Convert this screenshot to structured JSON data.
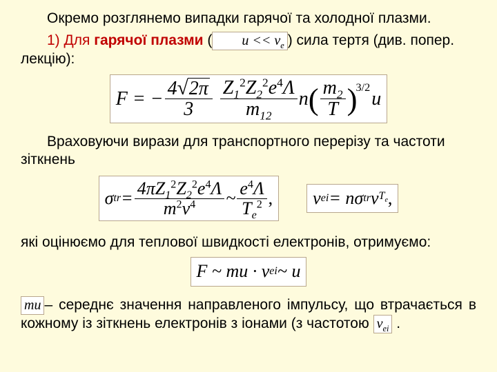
{
  "p1": "Окремо розглянемо випадки гарячої та холодної плазми.",
  "p2a": "1) Для ",
  "p2b": "гарячої плазми",
  "p2c": "  (",
  "p2d_math": "u << v",
  "p2d_sub": "e",
  "p2e": ")   сила тертя (див. попер. лекцію):",
  "f1": {
    "lhs": "F = −",
    "num1": "4",
    "sqrt": "2π",
    "num3": "3",
    "mid_num": "Z₁² Z₂² e⁴ Λ",
    "mid_den": "m₁₂",
    "n": " n",
    "par_num": "m₂",
    "par_den": "T",
    "pow": "3/2",
    "tail": "u"
  },
  "p3": "Враховуючи вирази для транспортного перерізу та частоти зіткнень",
  "f2": {
    "a_lhs": "σ",
    "a_sub": "tr",
    "a_eq": " = ",
    "a_num": "4π Z₁² Z₂² e⁴ Λ",
    "a_den": "m² v⁴",
    "a_mid": " ~ ",
    "a_num2": "e⁴ Λ",
    "a_den2": "T",
    "a_den2_sub": "e",
    "a_den2_sup": "2",
    "a_tail": " ,",
    "b": "ν",
    "b_sub": "ei",
    "b_eq": " = nσ",
    "b_sub2": "tr",
    "b_v": "v",
    "b_vT": "T",
    "b_vTe": "e",
    "b_tail": " ,"
  },
  "p4": "які оцінюємо для теплової швидкості електронів, отримуємо:",
  "f3": {
    "t": "F ~ mu · ν",
    "sub": "ei",
    "t2": " ~ u"
  },
  "p5a_math": "mu",
  "p5a": "– середнє значення направленого імпульсу, що втрачається в кожному із зіткнень електронів з іонами (з частотою ",
  "p5b_math": "ν",
  "p5b_sub": "ei",
  "p5c": " ."
}
